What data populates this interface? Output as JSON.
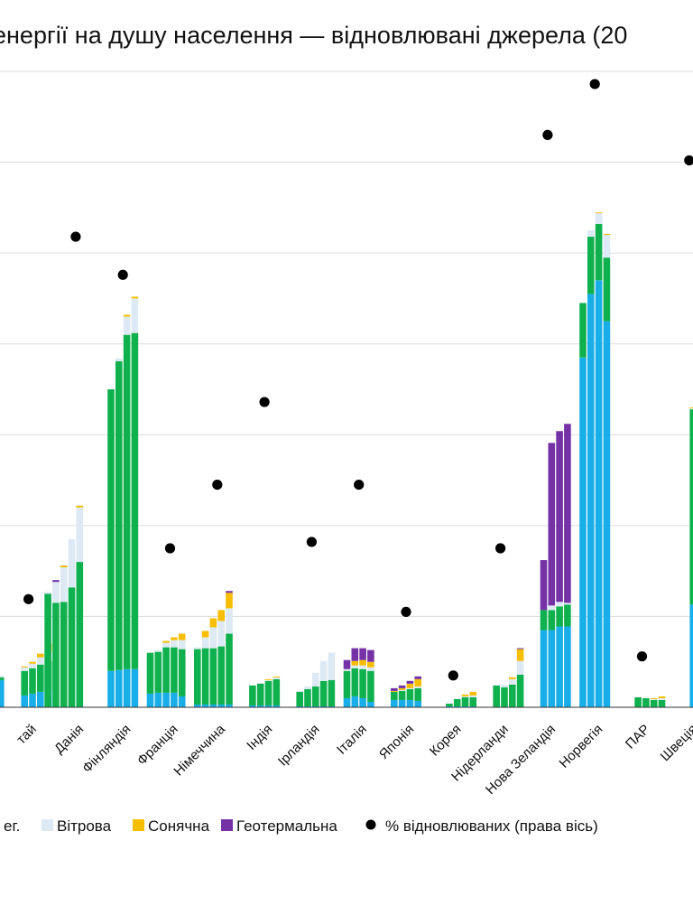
{
  "chart_data": {
    "type": "bar",
    "stacked": true,
    "title": "енергії на душу населення — відновлювані джерела (20",
    "legend_position": "bottom",
    "grid": true,
    "colors": {
      "hydro": "#19aee8",
      "bio": "#0fb14e",
      "wind": "#dde9f4",
      "solar": "#f7be00",
      "geo": "#7432a6",
      "dot": "#000000",
      "grid": "#dcdcdc",
      "axis": "#333333"
    },
    "legend": [
      {
        "key": "bio",
        "label": "ег."
      },
      {
        "key": "wind",
        "label": "Вітрова"
      },
      {
        "key": "solar",
        "label": "Сонячна"
      },
      {
        "key": "geo",
        "label": "Геотермальна"
      },
      {
        "key": "dot",
        "label": "% відновлюваних (права вісь)"
      }
    ],
    "categories": [
      "тай",
      "Данія",
      "Фінляндія",
      "Франція",
      "Німеччина",
      "Індія",
      "Ірландія",
      "Італія",
      "Японія",
      "Корея",
      "Нідерланди",
      "Нова Зеландія",
      "Норвегія",
      "ПАР",
      "Швеція",
      "Шве"
    ],
    "ylim": [
      0,
      700
    ],
    "y2lim": [
      0,
      100
    ],
    "groups": [
      {
        "label": "тай",
        "pct": 17,
        "bars": [
          [
            30,
            3,
            2,
            0,
            0
          ],
          [
            0,
            0,
            0,
            0,
            0
          ],
          [
            0,
            0,
            0,
            0,
            0
          ],
          [
            13,
            27,
            4,
            1,
            0
          ],
          [
            15,
            28,
            5,
            2,
            0
          ],
          [
            17,
            30,
            8,
            4,
            0
          ],
          [
            18,
            33,
            10,
            9,
            0
          ]
        ]
      },
      {
        "label": "Данія",
        "pct": 74,
        "bars": [
          [
            0,
            125,
            2,
            0,
            0
          ],
          [
            0,
            115,
            23,
            0,
            2
          ],
          [
            0,
            116,
            38,
            2,
            0
          ],
          [
            0,
            132,
            53,
            0,
            0
          ],
          [
            0,
            160,
            60,
            2,
            0
          ],
          [
            0,
            0,
            0,
            0,
            0
          ],
          [
            0,
            0,
            0,
            0,
            0
          ]
        ]
      },
      {
        "label": "Фінляндія",
        "pct": 68,
        "bars": [
          [
            0,
            0,
            0,
            0,
            0
          ],
          [
            0,
            0,
            0,
            0,
            0
          ],
          [
            40,
            310,
            0,
            0,
            0
          ],
          [
            41,
            340,
            3,
            0,
            0
          ],
          [
            42,
            368,
            20,
            2,
            0
          ],
          [
            42,
            370,
            38,
            2,
            0
          ],
          [
            0,
            0,
            0,
            0,
            0
          ]
        ]
      },
      {
        "label": "Франція",
        "pct": 25,
        "bars": [
          [
            0,
            0,
            0,
            0,
            0
          ],
          [
            15,
            45,
            0,
            0,
            0
          ],
          [
            16,
            45,
            2,
            0,
            0
          ],
          [
            16,
            50,
            5,
            2,
            0
          ],
          [
            16,
            50,
            8,
            3,
            0
          ],
          [
            12,
            52,
            10,
            7,
            0
          ],
          [
            0,
            0,
            0,
            0,
            0
          ]
        ]
      },
      {
        "label": "Німеччина",
        "pct": 35,
        "bars": [
          [
            0,
            0,
            0,
            0,
            0
          ],
          [
            3,
            61,
            2,
            0,
            0
          ],
          [
            3,
            62,
            12,
            7,
            0
          ],
          [
            3,
            62,
            23,
            10,
            0
          ],
          [
            3,
            64,
            28,
            12,
            0
          ],
          [
            3,
            78,
            28,
            17,
            2
          ],
          [
            0,
            0,
            0,
            0,
            0
          ]
        ]
      },
      {
        "label": "Індія",
        "pct": 48,
        "bars": [
          [
            0,
            0,
            0,
            0,
            0
          ],
          [
            0,
            0,
            0,
            0,
            0
          ],
          [
            2,
            22,
            0,
            0,
            0
          ],
          [
            2,
            24,
            1,
            0,
            0
          ],
          [
            2,
            27,
            1,
            1,
            0
          ],
          [
            2,
            29,
            2,
            1,
            0
          ],
          [
            0,
            0,
            0,
            0,
            0
          ]
        ]
      },
      {
        "label": "Ірландія",
        "pct": 26,
        "bars": [
          [
            0,
            0,
            0,
            0,
            0
          ],
          [
            0,
            0,
            0,
            0,
            0
          ],
          [
            1,
            16,
            1,
            0,
            0
          ],
          [
            1,
            19,
            3,
            0,
            0
          ],
          [
            1,
            22,
            15,
            0,
            0
          ],
          [
            1,
            28,
            22,
            0,
            0
          ],
          [
            1,
            29,
            30,
            0,
            0
          ]
        ]
      },
      {
        "label": "Італія",
        "pct": 35,
        "bars": [
          [
            0,
            0,
            0,
            0,
            0
          ],
          [
            0,
            0,
            0,
            0,
            0
          ],
          [
            10,
            30,
            2,
            0,
            10
          ],
          [
            12,
            31,
            3,
            5,
            14
          ],
          [
            10,
            32,
            4,
            6,
            13
          ],
          [
            6,
            34,
            4,
            6,
            13
          ],
          [
            0,
            0,
            0,
            0,
            0
          ]
        ]
      },
      {
        "label": "Японія",
        "pct": 15,
        "bars": [
          [
            0,
            0,
            0,
            0,
            0
          ],
          [
            0,
            0,
            0,
            0,
            0
          ],
          [
            8,
            9,
            0,
            1,
            3
          ],
          [
            8,
            10,
            1,
            2,
            3
          ],
          [
            8,
            12,
            1,
            5,
            3
          ],
          [
            7,
            14,
            2,
            8,
            3
          ],
          [
            0,
            0,
            0,
            0,
            0
          ]
        ]
      },
      {
        "label": "Корея",
        "pct": 5,
        "bars": [
          [
            0,
            0,
            0,
            0,
            0
          ],
          [
            0,
            0,
            0,
            0,
            0
          ],
          [
            0,
            0,
            0,
            0,
            0
          ],
          [
            1,
            3,
            0,
            0,
            0
          ],
          [
            1,
            8,
            0,
            0,
            0
          ],
          [
            1,
            10,
            1,
            2,
            0
          ],
          [
            1,
            10,
            2,
            4,
            0
          ]
        ]
      },
      {
        "label": "Нідерланди",
        "pct": 25,
        "bars": [
          [
            0,
            0,
            0,
            0,
            0
          ],
          [
            0,
            0,
            0,
            0,
            0
          ],
          [
            0,
            0,
            0,
            0,
            0
          ],
          [
            0,
            24,
            0,
            0,
            0
          ],
          [
            0,
            22,
            3,
            0,
            0
          ],
          [
            0,
            25,
            6,
            2,
            0
          ],
          [
            0,
            36,
            15,
            13,
            1
          ]
        ]
      },
      {
        "label": "Нова Зеландія",
        "pct": 90,
        "bars": [
          [
            0,
            0,
            0,
            0,
            0
          ],
          [
            0,
            0,
            0,
            0,
            0
          ],
          [
            0,
            0,
            0,
            0,
            0
          ],
          [
            85,
            22,
            0,
            0,
            55
          ],
          [
            85,
            22,
            5,
            0,
            179
          ],
          [
            89,
            22,
            5,
            0,
            188
          ],
          [
            89,
            24,
            2,
            0,
            197
          ]
        ]
      },
      {
        "label": "Норвегія",
        "pct": 98,
        "bars": [
          [
            0,
            0,
            0,
            0,
            0
          ],
          [
            0,
            0,
            0,
            0,
            0
          ],
          [
            385,
            60,
            0,
            0,
            0
          ],
          [
            455,
            63,
            7,
            0,
            0
          ],
          [
            470,
            62,
            12,
            1,
            0
          ],
          [
            425,
            70,
            25,
            1,
            0
          ],
          [
            0,
            0,
            0,
            0,
            0
          ]
        ]
      },
      {
        "label": "ПАР",
        "pct": 8,
        "bars": [
          [
            0,
            0,
            0,
            0,
            0
          ],
          [
            0,
            0,
            0,
            0,
            0
          ],
          [
            0,
            0,
            0,
            0,
            0
          ],
          [
            0,
            11,
            0,
            0,
            0
          ],
          [
            0,
            10,
            0,
            0,
            0
          ],
          [
            0,
            8,
            1,
            1,
            0
          ],
          [
            0,
            8,
            2,
            2,
            0
          ]
        ]
      },
      {
        "label": "Швеція",
        "pct": 86,
        "bars": [
          [
            0,
            0,
            0,
            0,
            0
          ],
          [
            0,
            0,
            0,
            0,
            0
          ],
          [
            0,
            0,
            0,
            0,
            0
          ],
          [
            0,
            0,
            0,
            0,
            0
          ],
          [
            113,
            215,
            1,
            1,
            0
          ],
          [
            110,
            215,
            13,
            1,
            0
          ],
          [
            105,
            234,
            22,
            1,
            0
          ]
        ]
      },
      {
        "label": "Шве",
        "pct": 0,
        "bars": [
          [
            114,
            230,
            35,
            1,
            0
          ],
          [
            0,
            0,
            0,
            0,
            0
          ],
          [
            0,
            0,
            0,
            0,
            0
          ],
          [
            0,
            0,
            0,
            0,
            0
          ],
          [
            0,
            0,
            0,
            0,
            0
          ],
          [
            0,
            0,
            0,
            0,
            0
          ],
          [
            0,
            0,
            0,
            0,
            0
          ]
        ]
      }
    ]
  }
}
